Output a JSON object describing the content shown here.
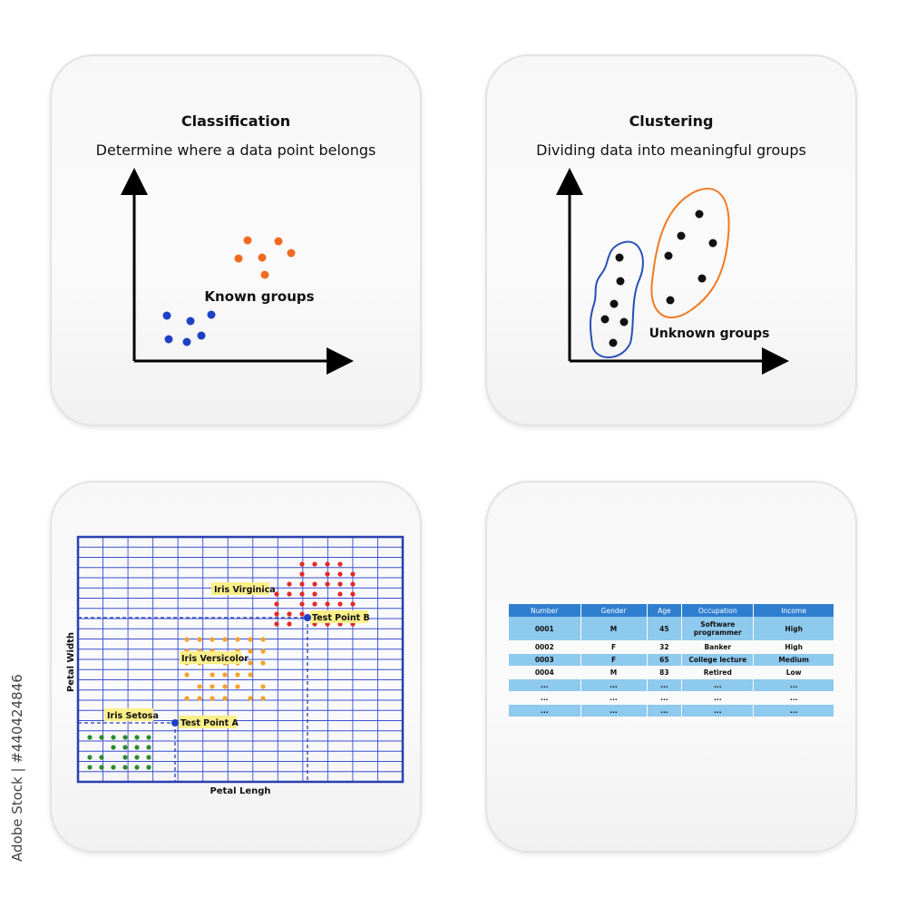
{
  "classification": {
    "title": "Classification",
    "subtitle": "Determine where a data point belongs",
    "label": "Known groups",
    "colors": {
      "blue": "#1f3fc4",
      "orange": "#f06a21"
    }
  },
  "clustering": {
    "title": "Clustering",
    "subtitle": "Dividing data into meaningful groups",
    "label": "Unknown groups",
    "colors": {
      "blue_outline": "#2b4fb8",
      "orange_outline": "#f07b24",
      "points": "#111111"
    }
  },
  "iris_chart": {
    "xlabel": "Petal Lengh",
    "ylabel": "Petal Width",
    "labels": {
      "virginica": "Iris Virginica",
      "versicolor": "Iris Versicolor",
      "setosa": "Iris Setosa",
      "test_a": "Test Point A",
      "test_b": "Test Point B"
    },
    "colors": {
      "grid": "#3a4fd0",
      "virginica": "#e12a2a",
      "versicolor": "#f7a12a",
      "setosa": "#2d8a2d",
      "test": "#1f3fc4",
      "label_bg": "#fbef8a"
    }
  },
  "table": {
    "headers": [
      "Number",
      "Gender",
      "Age",
      "Occupation",
      "Income"
    ],
    "rows": [
      [
        "0001",
        "M",
        "45",
        "Software programmer",
        "High"
      ],
      [
        "0002",
        "F",
        "32",
        "Banker",
        "High"
      ],
      [
        "0003",
        "F",
        "65",
        "College lecture",
        "Medium"
      ],
      [
        "0004",
        "M",
        "83",
        "Retired",
        "Low"
      ],
      [
        "...",
        "...",
        "...",
        "...",
        "..."
      ],
      [
        "...",
        "...",
        "...",
        "...",
        "..."
      ],
      [
        "...",
        "...",
        "...",
        "...",
        "..."
      ]
    ]
  },
  "watermark": {
    "side_id": "Adobe Stock | #440424846"
  }
}
